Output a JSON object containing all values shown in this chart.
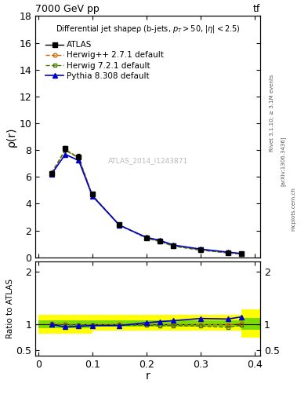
{
  "title_top": "7000 GeV pp",
  "title_top_right": "tf",
  "ylabel_main": "ρ(r)",
  "ylabel_ratio": "Ratio to ATLAS",
  "xlabel": "r",
  "subtitle": "Differential jet shapeρ (b-jets, p_{T}>50, |η| < 2.5)",
  "watermark": "ATLAS_2014_I1243871",
  "right_label": "Rivet 3.1.10; ≥ 3.1M events",
  "right_label2": "[arXiv:1306.3436]",
  "right_label3": "mcplots.cern.ch",
  "r_values": [
    0.025,
    0.05,
    0.075,
    0.1,
    0.15,
    0.2,
    0.225,
    0.25,
    0.3,
    0.35,
    0.375
  ],
  "atlas_y": [
    6.25,
    8.1,
    7.5,
    4.7,
    2.45,
    1.45,
    1.2,
    0.85,
    0.55,
    0.35,
    0.25
  ],
  "atlas_yerr": [
    0.18,
    0.22,
    0.2,
    0.15,
    0.1,
    0.07,
    0.06,
    0.05,
    0.03,
    0.025,
    0.02
  ],
  "herwig_pp_y": [
    6.3,
    8.05,
    7.45,
    4.65,
    2.43,
    1.44,
    1.19,
    0.84,
    0.54,
    0.34,
    0.25
  ],
  "herwig7_y": [
    6.28,
    7.98,
    7.42,
    4.62,
    2.4,
    1.42,
    1.17,
    0.83,
    0.53,
    0.33,
    0.245
  ],
  "pythia_y": [
    6.22,
    7.68,
    7.22,
    4.58,
    2.39,
    1.49,
    1.26,
    0.91,
    0.61,
    0.385,
    0.285
  ],
  "herwig_pp_ratio": [
    1.01,
    0.995,
    0.99,
    0.99,
    0.995,
    0.995,
    0.99,
    0.99,
    0.99,
    0.99,
    1.01
  ],
  "herwig7_ratio": [
    1.0,
    0.985,
    0.988,
    0.98,
    0.98,
    0.98,
    0.975,
    0.975,
    0.965,
    0.943,
    0.98
  ],
  "pythia_ratio": [
    0.996,
    0.948,
    0.963,
    0.975,
    0.976,
    1.03,
    1.05,
    1.07,
    1.11,
    1.1,
    1.14
  ],
  "band_yellow_lo": [
    0.82,
    0.82,
    0.82,
    0.88,
    0.88,
    0.88,
    0.88,
    0.88,
    0.88,
    0.88,
    0.75
  ],
  "band_yellow_hi": [
    1.18,
    1.18,
    1.18,
    1.18,
    1.18,
    1.18,
    1.18,
    1.18,
    1.18,
    1.18,
    1.28
  ],
  "band_green_lo": [
    0.93,
    0.93,
    0.93,
    0.95,
    0.95,
    0.95,
    0.95,
    0.95,
    0.95,
    0.95,
    0.9
  ],
  "band_green_hi": [
    1.07,
    1.07,
    1.07,
    1.07,
    1.07,
    1.07,
    1.07,
    1.07,
    1.07,
    1.07,
    1.12
  ],
  "bin_edges": [
    0.0,
    0.05,
    0.075,
    0.1,
    0.15,
    0.2,
    0.225,
    0.25,
    0.3,
    0.35,
    0.375,
    0.41
  ],
  "ylim_main": [
    0,
    18
  ],
  "ylim_ratio": [
    0.4,
    2.2
  ],
  "xlim": [
    -0.005,
    0.41
  ],
  "color_atlas": "#000000",
  "color_herwig_pp": "#cc6600",
  "color_herwig7": "#447700",
  "color_pythia": "#0000cc",
  "color_band_yellow": "#ffff00",
  "color_band_green": "#44cc00",
  "legend_items": [
    "ATLAS",
    "Herwig++ 2.7.1 default",
    "Herwig 7.2.1 default",
    "Pythia 8.308 default"
  ],
  "yticks_main": [
    0,
    2,
    4,
    6,
    8,
    10,
    12,
    14,
    16,
    18
  ],
  "yticks_ratio": [
    0.5,
    1.0,
    2.0
  ],
  "xticks": [
    0.0,
    0.1,
    0.2,
    0.3,
    0.4
  ]
}
